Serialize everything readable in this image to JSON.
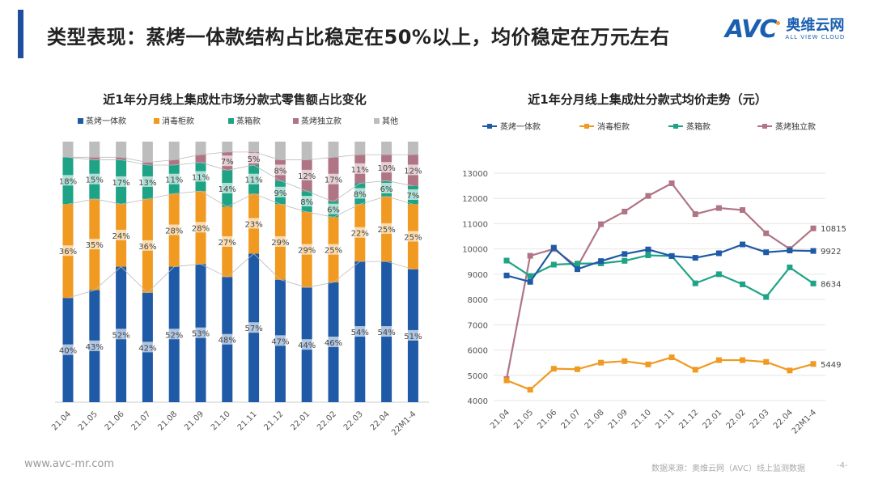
{
  "header": {
    "title": "类型表现：蒸烤一体款结构占比稳定在50%以上，均价稳定在万元左右",
    "logo_mark": "AVC",
    "logo_cn": "奥维云网",
    "logo_en": "ALL VIEW CLOUD"
  },
  "footer": {
    "url": "www.avc-mr.com",
    "source": "数据来源：奥维云网（AVC）线上监测数据",
    "page": "-4-"
  },
  "colors": {
    "accent": "#1f4e9c",
    "series": [
      "#1f5aa6",
      "#f09a22",
      "#1fa386",
      "#b07584",
      "#bdbdbd"
    ]
  },
  "chart_data": [
    {
      "type": "bar",
      "stacked": true,
      "title": "近1年分月线上集成灶市场分款式零售额占比变化",
      "legend_position": "top",
      "categories": [
        "21.04",
        "21.05",
        "21.06",
        "21.07",
        "21.08",
        "21.09",
        "21.10",
        "21.11",
        "21.12",
        "22.01",
        "22.02",
        "22.03",
        "22.04",
        "22M1-4"
      ],
      "ylim": [
        0,
        100
      ],
      "unit": "%",
      "series": [
        {
          "name": "蒸烤一体款",
          "values": [
            40,
            43,
            52,
            42,
            52,
            53,
            48,
            57,
            47,
            44,
            46,
            54,
            54,
            51
          ],
          "labels": [
            "40%",
            "43%",
            "52%",
            "42%",
            "52%",
            "53%",
            "48%",
            "57%",
            "47%",
            "44%",
            "46%",
            "54%",
            "54%",
            "51%"
          ]
        },
        {
          "name": "消毒柜款",
          "values": [
            36,
            35,
            24,
            36,
            28,
            28,
            27,
            23,
            29,
            29,
            25,
            22,
            25,
            25
          ],
          "labels": [
            "36%",
            "35%",
            "24%",
            "36%",
            "28%",
            "28%",
            "27%",
            "23%",
            "29%",
            "29%",
            "25%",
            "22%",
            "25%",
            "25%"
          ]
        },
        {
          "name": "蒸箱款",
          "values": [
            18,
            15,
            17,
            13,
            11,
            11,
            14,
            11,
            9,
            8,
            6,
            8,
            6,
            7
          ],
          "labels": [
            "18%",
            "15%",
            "17%",
            "13%",
            "11%",
            "11%",
            "14%",
            "11%",
            "9%",
            "8%",
            "6%",
            "8%",
            "6%",
            "7%"
          ]
        },
        {
          "name": "蒸烤独立款",
          "values": [
            0,
            1,
            1,
            1,
            2,
            3,
            7,
            5,
            8,
            12,
            17,
            11,
            10,
            12
          ],
          "labels": [
            "",
            "",
            "",
            "",
            "",
            "",
            "7%",
            "5%",
            "8%",
            "12%",
            "17%",
            "11%",
            "10%",
            "12%"
          ]
        },
        {
          "name": "其他",
          "values": [
            6,
            6,
            6,
            8,
            7,
            5,
            4,
            4,
            7,
            7,
            6,
            5,
            5,
            5
          ],
          "labels": [
            "",
            "",
            "",
            "",
            "",
            "",
            "",
            "",
            "",
            "",
            "",
            "",
            "",
            ""
          ]
        }
      ]
    },
    {
      "type": "line",
      "title": "近1年分月线上集成灶分款式均价走势（元）",
      "legend_position": "top",
      "categories": [
        "21.04",
        "21.05",
        "21.06",
        "21.07",
        "21.08",
        "21.09",
        "21.10",
        "21.11",
        "21.12",
        "22.01",
        "22.02",
        "22.03",
        "22.04",
        "22M1-4"
      ],
      "ylim": [
        4000,
        13000
      ],
      "yticks": [
        4000,
        5000,
        6000,
        7000,
        8000,
        9000,
        10000,
        11000,
        12000,
        13000
      ],
      "grid": true,
      "series": [
        {
          "name": "蒸烤一体款",
          "values": [
            8950,
            8700,
            10050,
            9200,
            9520,
            9800,
            9980,
            9720,
            9650,
            9830,
            10180,
            9870,
            9940,
            9922
          ],
          "end_label": "9922"
        },
        {
          "name": "消毒柜款",
          "values": [
            4800,
            4430,
            5260,
            5240,
            5500,
            5560,
            5430,
            5710,
            5220,
            5600,
            5600,
            5530,
            5190,
            5449
          ],
          "end_label": "5449"
        },
        {
          "name": "蒸箱款",
          "values": [
            9540,
            8930,
            9380,
            9420,
            9430,
            9530,
            9750,
            9720,
            8640,
            9000,
            8600,
            8100,
            9270,
            8634
          ],
          "end_label": "8634"
        },
        {
          "name": "蒸烤独立款",
          "values": [
            4850,
            9730,
            10000,
            9300,
            10980,
            11480,
            12100,
            12600,
            11380,
            11620,
            11540,
            10620,
            10000,
            10815
          ],
          "end_label": "10815"
        }
      ]
    }
  ]
}
